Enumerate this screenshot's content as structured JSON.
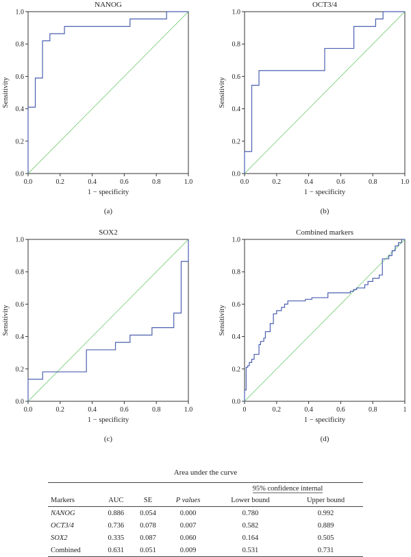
{
  "colors": {
    "roc": "#4a5fb0",
    "reference": "#7fd07f",
    "axis": "#333333"
  },
  "chart_data": [
    {
      "type": "line",
      "title": "NANOG",
      "panel_label": "(a)",
      "xlabel": "1 − specificity",
      "ylabel": "Sensitivity",
      "xlim": [
        0,
        1
      ],
      "ylim": [
        0,
        1
      ],
      "x_ticks": [
        "0.0",
        "0.2",
        "0.4",
        "0.6",
        "0.8",
        "1.0"
      ],
      "y_ticks": [
        "0.0",
        "0.2",
        "0.4",
        "0.6",
        "0.8",
        "1.0"
      ],
      "grid": false,
      "reference_line": [
        [
          0,
          0
        ],
        [
          1,
          1
        ]
      ],
      "roc_points": [
        [
          0,
          0
        ],
        [
          0,
          0.41
        ],
        [
          0.045,
          0.41
        ],
        [
          0.045,
          0.59
        ],
        [
          0.09,
          0.59
        ],
        [
          0.09,
          0.82
        ],
        [
          0.136,
          0.82
        ],
        [
          0.136,
          0.864
        ],
        [
          0.227,
          0.864
        ],
        [
          0.227,
          0.909
        ],
        [
          0.636,
          0.909
        ],
        [
          0.636,
          0.955
        ],
        [
          0.864,
          0.955
        ],
        [
          0.864,
          1.0
        ],
        [
          1,
          1
        ]
      ]
    },
    {
      "type": "line",
      "title": "OCT3/4",
      "panel_label": "(b)",
      "xlabel": "1 − specificity",
      "ylabel": "Sensitivity",
      "xlim": [
        0,
        1
      ],
      "ylim": [
        0,
        1
      ],
      "x_ticks": [
        "0.0",
        "0.2",
        "0.4",
        "0.6",
        "0.8",
        "1.0"
      ],
      "y_ticks": [
        "0.0",
        "0.2",
        "0.4",
        "0.6",
        "0.8",
        "1.0"
      ],
      "grid": false,
      "reference_line": [
        [
          0,
          0
        ],
        [
          1,
          1
        ]
      ],
      "roc_points": [
        [
          0,
          0
        ],
        [
          0,
          0.136
        ],
        [
          0.045,
          0.136
        ],
        [
          0.045,
          0.545
        ],
        [
          0.09,
          0.545
        ],
        [
          0.09,
          0.636
        ],
        [
          0.5,
          0.636
        ],
        [
          0.5,
          0.773
        ],
        [
          0.682,
          0.773
        ],
        [
          0.682,
          0.909
        ],
        [
          0.818,
          0.909
        ],
        [
          0.818,
          0.955
        ],
        [
          0.864,
          0.955
        ],
        [
          0.864,
          1.0
        ],
        [
          1,
          1
        ]
      ]
    },
    {
      "type": "line",
      "title": "SOX2",
      "panel_label": "(c)",
      "xlabel": "1 − specificity",
      "ylabel": "Sensitivity",
      "xlim": [
        0,
        1
      ],
      "ylim": [
        0,
        1
      ],
      "x_ticks": [
        "0.0",
        "0.2",
        "0.4",
        "0.6",
        "0.8",
        "1.0"
      ],
      "y_ticks": [
        "0.0",
        "0.2",
        "0.4",
        "0.6",
        "0.8",
        "1.0"
      ],
      "grid": false,
      "reference_line": [
        [
          0,
          0
        ],
        [
          1,
          1
        ]
      ],
      "roc_points": [
        [
          0,
          0
        ],
        [
          0,
          0.136
        ],
        [
          0.091,
          0.136
        ],
        [
          0.091,
          0.182
        ],
        [
          0.364,
          0.182
        ],
        [
          0.364,
          0.318
        ],
        [
          0.545,
          0.318
        ],
        [
          0.545,
          0.364
        ],
        [
          0.636,
          0.364
        ],
        [
          0.636,
          0.409
        ],
        [
          0.773,
          0.409
        ],
        [
          0.773,
          0.455
        ],
        [
          0.909,
          0.455
        ],
        [
          0.909,
          0.545
        ],
        [
          0.955,
          0.545
        ],
        [
          0.955,
          0.864
        ],
        [
          1,
          0.864
        ],
        [
          1,
          1
        ]
      ]
    },
    {
      "type": "line",
      "title": "Combined markers",
      "panel_label": "(d)",
      "xlabel": "1 − specificity",
      "ylabel": "Sensitivity",
      "xlim": [
        0,
        1
      ],
      "ylim": [
        0,
        1
      ],
      "x_ticks": [
        "0",
        "0.2",
        "0.4",
        "0.6",
        "0.8",
        "1"
      ],
      "y_ticks": [
        "0.0",
        "0.2",
        "0.4",
        "0.6",
        "0.8",
        "1.0"
      ],
      "grid": false,
      "reference_line": [
        [
          0,
          0
        ],
        [
          1,
          1
        ]
      ],
      "roc_points": [
        [
          0,
          0
        ],
        [
          0,
          0.07
        ],
        [
          0.01,
          0.07
        ],
        [
          0.01,
          0.21
        ],
        [
          0.02,
          0.21
        ],
        [
          0.02,
          0.22
        ],
        [
          0.03,
          0.22
        ],
        [
          0.03,
          0.24
        ],
        [
          0.045,
          0.24
        ],
        [
          0.045,
          0.26
        ],
        [
          0.06,
          0.26
        ],
        [
          0.06,
          0.29
        ],
        [
          0.09,
          0.29
        ],
        [
          0.09,
          0.35
        ],
        [
          0.1,
          0.35
        ],
        [
          0.1,
          0.37
        ],
        [
          0.12,
          0.37
        ],
        [
          0.12,
          0.39
        ],
        [
          0.13,
          0.39
        ],
        [
          0.13,
          0.43
        ],
        [
          0.16,
          0.43
        ],
        [
          0.16,
          0.48
        ],
        [
          0.18,
          0.48
        ],
        [
          0.18,
          0.54
        ],
        [
          0.2,
          0.54
        ],
        [
          0.2,
          0.56
        ],
        [
          0.23,
          0.56
        ],
        [
          0.23,
          0.58
        ],
        [
          0.25,
          0.58
        ],
        [
          0.25,
          0.6
        ],
        [
          0.27,
          0.6
        ],
        [
          0.27,
          0.62
        ],
        [
          0.38,
          0.62
        ],
        [
          0.38,
          0.63
        ],
        [
          0.42,
          0.63
        ],
        [
          0.42,
          0.64
        ],
        [
          0.52,
          0.64
        ],
        [
          0.52,
          0.67
        ],
        [
          0.66,
          0.67
        ],
        [
          0.66,
          0.68
        ],
        [
          0.68,
          0.68
        ],
        [
          0.68,
          0.69
        ],
        [
          0.7,
          0.69
        ],
        [
          0.7,
          0.7
        ],
        [
          0.75,
          0.7
        ],
        [
          0.75,
          0.72
        ],
        [
          0.77,
          0.72
        ],
        [
          0.77,
          0.74
        ],
        [
          0.8,
          0.74
        ],
        [
          0.8,
          0.76
        ],
        [
          0.84,
          0.76
        ],
        [
          0.84,
          0.78
        ],
        [
          0.86,
          0.78
        ],
        [
          0.86,
          0.88
        ],
        [
          0.9,
          0.88
        ],
        [
          0.9,
          0.9
        ],
        [
          0.92,
          0.9
        ],
        [
          0.92,
          0.93
        ],
        [
          0.94,
          0.93
        ],
        [
          0.94,
          0.96
        ],
        [
          0.96,
          0.96
        ],
        [
          0.96,
          0.98
        ],
        [
          0.98,
          0.98
        ],
        [
          0.98,
          1.0
        ],
        [
          1,
          1
        ]
      ]
    }
  ],
  "auc_table": {
    "title": "Area under the curve",
    "ci_header": "95% confidence internal",
    "headers": [
      "Markers",
      "AUC",
      "SE",
      "P values",
      "Lower bound",
      "Upper bound"
    ],
    "rows": [
      [
        "NANOG",
        "0.886",
        "0.054",
        "0.000",
        "0.780",
        "0.992"
      ],
      [
        "OCT3/4",
        "0.736",
        "0.078",
        "0.007",
        "0.582",
        "0.889"
      ],
      [
        "SOX2",
        "0.335",
        "0.087",
        "0.060",
        "0.164",
        "0.505"
      ],
      [
        "Combined",
        "0.631",
        "0.051",
        "0.009",
        "0.531",
        "0.731"
      ]
    ]
  }
}
